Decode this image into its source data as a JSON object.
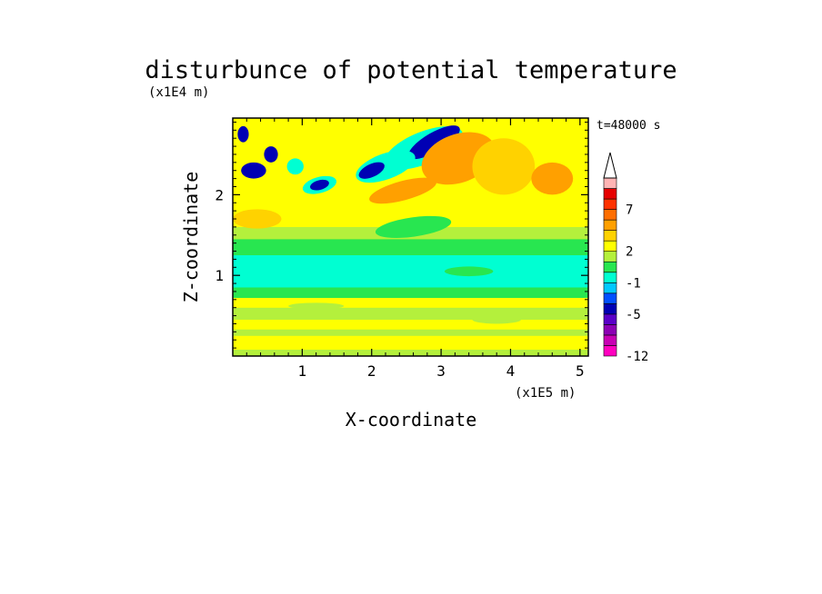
{
  "chart_data": {
    "type": "heatmap",
    "title": "disturbunce of potential temperature",
    "xlabel": "X-coordinate",
    "ylabel": "Z-coordinate",
    "x_unit": "(x1E5 m)",
    "y_unit": "(x1E4 m)",
    "time_label": "t=48000 s",
    "xlim": [
      0,
      5.12
    ],
    "ylim": [
      0,
      2.95
    ],
    "x_ticks": [
      "1",
      "2",
      "3",
      "4",
      "5"
    ],
    "y_ticks": [
      "1",
      "2"
    ],
    "colorbar": {
      "levels": [
        -12,
        -10,
        -8,
        -6,
        -5,
        -3,
        -2,
        -1,
        0,
        1,
        2,
        3,
        4,
        5,
        7,
        9,
        11
      ],
      "tick_labels": [
        "-12",
        "-5",
        "-1",
        "2",
        "7"
      ],
      "colors": [
        "#ff00c0",
        "#c800b4",
        "#8c00b4",
        "#5a00c8",
        "#0000b4",
        "#0050ff",
        "#00c8ff",
        "#00ffd2",
        "#28e650",
        "#b4f03c",
        "#ffff00",
        "#ffd200",
        "#ffa000",
        "#ff6e00",
        "#ff3200",
        "#e60000",
        "#ffb4b4"
      ],
      "extend": "max"
    },
    "bands": [
      {
        "z": [
          0.0,
          0.08
        ],
        "level": 1
      },
      {
        "z": [
          0.08,
          0.25
        ],
        "level": 2
      },
      {
        "z": [
          0.25,
          0.33
        ],
        "level": 1
      },
      {
        "z": [
          0.33,
          0.45
        ],
        "level": 2
      },
      {
        "z": [
          0.45,
          0.6
        ],
        "level": 1
      },
      {
        "z": [
          0.6,
          0.72
        ],
        "level": 2
      },
      {
        "z": [
          0.72,
          0.85
        ],
        "level": 0
      },
      {
        "z": [
          0.85,
          1.25
        ],
        "level": -1
      },
      {
        "z": [
          1.25,
          1.45
        ],
        "level": 0
      },
      {
        "z": [
          1.45,
          1.6
        ],
        "level": 1
      },
      {
        "z": [
          1.6,
          1.85
        ],
        "level": 2
      }
    ],
    "features": [
      {
        "x": 2.75,
        "z": 2.58,
        "rx": 0.6,
        "rz": 0.2,
        "level": -1,
        "angle": -22
      },
      {
        "x": 2.9,
        "z": 2.65,
        "rx": 0.42,
        "rz": 0.12,
        "level": -5,
        "angle": -30
      },
      {
        "x": 2.2,
        "z": 2.35,
        "rx": 0.45,
        "rz": 0.16,
        "level": -1,
        "angle": -20
      },
      {
        "x": 2.0,
        "z": 2.3,
        "rx": 0.2,
        "rz": 0.08,
        "level": -5,
        "angle": -25
      },
      {
        "x": 1.25,
        "z": 2.12,
        "rx": 0.25,
        "rz": 0.1,
        "level": -1,
        "angle": -15
      },
      {
        "x": 1.25,
        "z": 2.12,
        "rx": 0.14,
        "rz": 0.06,
        "level": -5,
        "angle": -15
      },
      {
        "x": 3.25,
        "z": 2.45,
        "rx": 0.55,
        "rz": 0.3,
        "level": 4,
        "angle": -20
      },
      {
        "x": 3.9,
        "z": 2.35,
        "rx": 0.45,
        "rz": 0.35,
        "level": 3,
        "angle": 0
      },
      {
        "x": 2.45,
        "z": 2.05,
        "rx": 0.5,
        "rz": 0.12,
        "level": 4,
        "angle": -15
      },
      {
        "x": 0.3,
        "z": 2.3,
        "rx": 0.18,
        "rz": 0.1,
        "level": -5,
        "angle": 0
      },
      {
        "x": 0.15,
        "z": 2.75,
        "rx": 0.08,
        "rz": 0.1,
        "level": -5,
        "angle": 0
      },
      {
        "x": 0.55,
        "z": 2.5,
        "rx": 0.1,
        "rz": 0.1,
        "level": -5,
        "angle": 0
      },
      {
        "x": 0.9,
        "z": 2.35,
        "rx": 0.12,
        "rz": 0.1,
        "level": -1,
        "angle": 0
      },
      {
        "x": 4.6,
        "z": 2.2,
        "rx": 0.3,
        "rz": 0.2,
        "level": 4,
        "angle": 0
      },
      {
        "x": 0.35,
        "z": 1.7,
        "rx": 0.35,
        "rz": 0.12,
        "level": 3,
        "angle": 0
      },
      {
        "x": 2.6,
        "z": 1.6,
        "rx": 0.55,
        "rz": 0.12,
        "level": 0,
        "angle": -8
      },
      {
        "x": 3.4,
        "z": 1.05,
        "rx": 0.35,
        "rz": 0.06,
        "level": 0,
        "angle": 0
      },
      {
        "x": 1.2,
        "z": 0.62,
        "rx": 0.4,
        "rz": 0.04,
        "level": 1,
        "angle": 0
      },
      {
        "x": 3.8,
        "z": 0.45,
        "rx": 0.35,
        "rz": 0.05,
        "level": 1,
        "angle": 0
      }
    ]
  }
}
